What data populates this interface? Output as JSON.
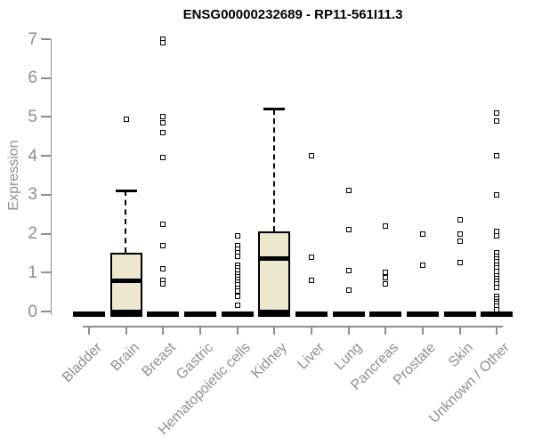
{
  "chart_data": {
    "type": "boxplot",
    "title": "ENSG00000232689 - RP11-561I11.3",
    "ylabel": "Expression",
    "ylim": [
      0,
      7
    ],
    "yticks": [
      0,
      1,
      2,
      3,
      4,
      5,
      6,
      7
    ],
    "grid": false,
    "legend": false,
    "categories": [
      "Bladder",
      "Brain",
      "Breast",
      "Gastric",
      "Hematopoietic cells",
      "Kidney",
      "Liver",
      "Lung",
      "Pancreas",
      "Prostate",
      "Skin",
      "Unknown / Other"
    ],
    "boxes": [
      {
        "category": "Bladder",
        "q1": 0,
        "median": 0,
        "q3": 0,
        "whisker_low": 0,
        "whisker_high": 0,
        "outliers": []
      },
      {
        "category": "Brain",
        "q1": 0,
        "median": 0.8,
        "q3": 1.5,
        "whisker_low": 0,
        "whisker_high": 3.1,
        "outliers": [
          4.95
        ]
      },
      {
        "category": "Breast",
        "q1": 0,
        "median": 0,
        "q3": 0,
        "whisker_low": 0,
        "whisker_high": 0,
        "outliers": [
          7.0,
          6.9,
          5.0,
          4.85,
          4.6,
          3.95,
          2.25,
          1.7,
          1.1,
          0.8,
          0.7
        ]
      },
      {
        "category": "Gastric",
        "q1": 0,
        "median": 0,
        "q3": 0,
        "whisker_low": 0,
        "whisker_high": 0,
        "outliers": []
      },
      {
        "category": "Hematopoietic cells",
        "q1": 0,
        "median": 0,
        "q3": 0,
        "whisker_low": 0,
        "whisker_high": 0,
        "outliers": [
          1.95,
          1.7,
          1.6,
          1.5,
          1.42,
          1.2,
          1.12,
          1.05,
          0.97,
          0.9,
          0.82,
          0.75,
          0.68,
          0.6,
          0.52,
          0.38,
          0.15
        ]
      },
      {
        "category": "Kidney",
        "q1": 0,
        "median": 1.35,
        "q3": 2.05,
        "whisker_low": 0,
        "whisker_high": 5.2,
        "outliers": []
      },
      {
        "category": "Liver",
        "q1": 0,
        "median": 0,
        "q3": 0,
        "whisker_low": 0,
        "whisker_high": 0,
        "outliers": [
          4.0,
          1.4,
          0.8
        ]
      },
      {
        "category": "Lung",
        "q1": 0,
        "median": 0,
        "q3": 0,
        "whisker_low": 0,
        "whisker_high": 0,
        "outliers": [
          3.1,
          2.1,
          1.05,
          0.55
        ]
      },
      {
        "category": "Pancreas",
        "q1": 0,
        "median": 0,
        "q3": 0,
        "whisker_low": 0,
        "whisker_high": 0,
        "outliers": [
          2.2,
          1.0,
          0.88,
          0.7
        ]
      },
      {
        "category": "Prostate",
        "q1": 0,
        "median": 0,
        "q3": 0,
        "whisker_low": 0,
        "whisker_high": 0,
        "outliers": [
          2.0,
          1.2
        ]
      },
      {
        "category": "Skin",
        "q1": 0,
        "median": 0,
        "q3": 0,
        "whisker_low": 0,
        "whisker_high": 0,
        "outliers": [
          2.35,
          2.0,
          1.8,
          1.25
        ]
      },
      {
        "category": "Unknown / Other",
        "q1": 0,
        "median": 0,
        "q3": 0,
        "whisker_low": 0,
        "whisker_high": 0,
        "outliers": [
          5.1,
          4.9,
          4.0,
          3.0,
          2.05,
          1.95,
          1.5,
          1.42,
          1.35,
          1.28,
          1.2,
          1.12,
          1.02,
          0.92,
          0.85,
          0.78,
          0.7,
          0.62,
          0.4,
          0.33,
          0.26,
          0.2,
          0.13,
          0.05
        ]
      }
    ],
    "colors": {
      "box_fill": "#EDE7D0",
      "box_stroke": "#000000",
      "median": "#000000",
      "axis": "#8E8E8E",
      "title": "#000000",
      "background": "#FFFFFF"
    }
  }
}
